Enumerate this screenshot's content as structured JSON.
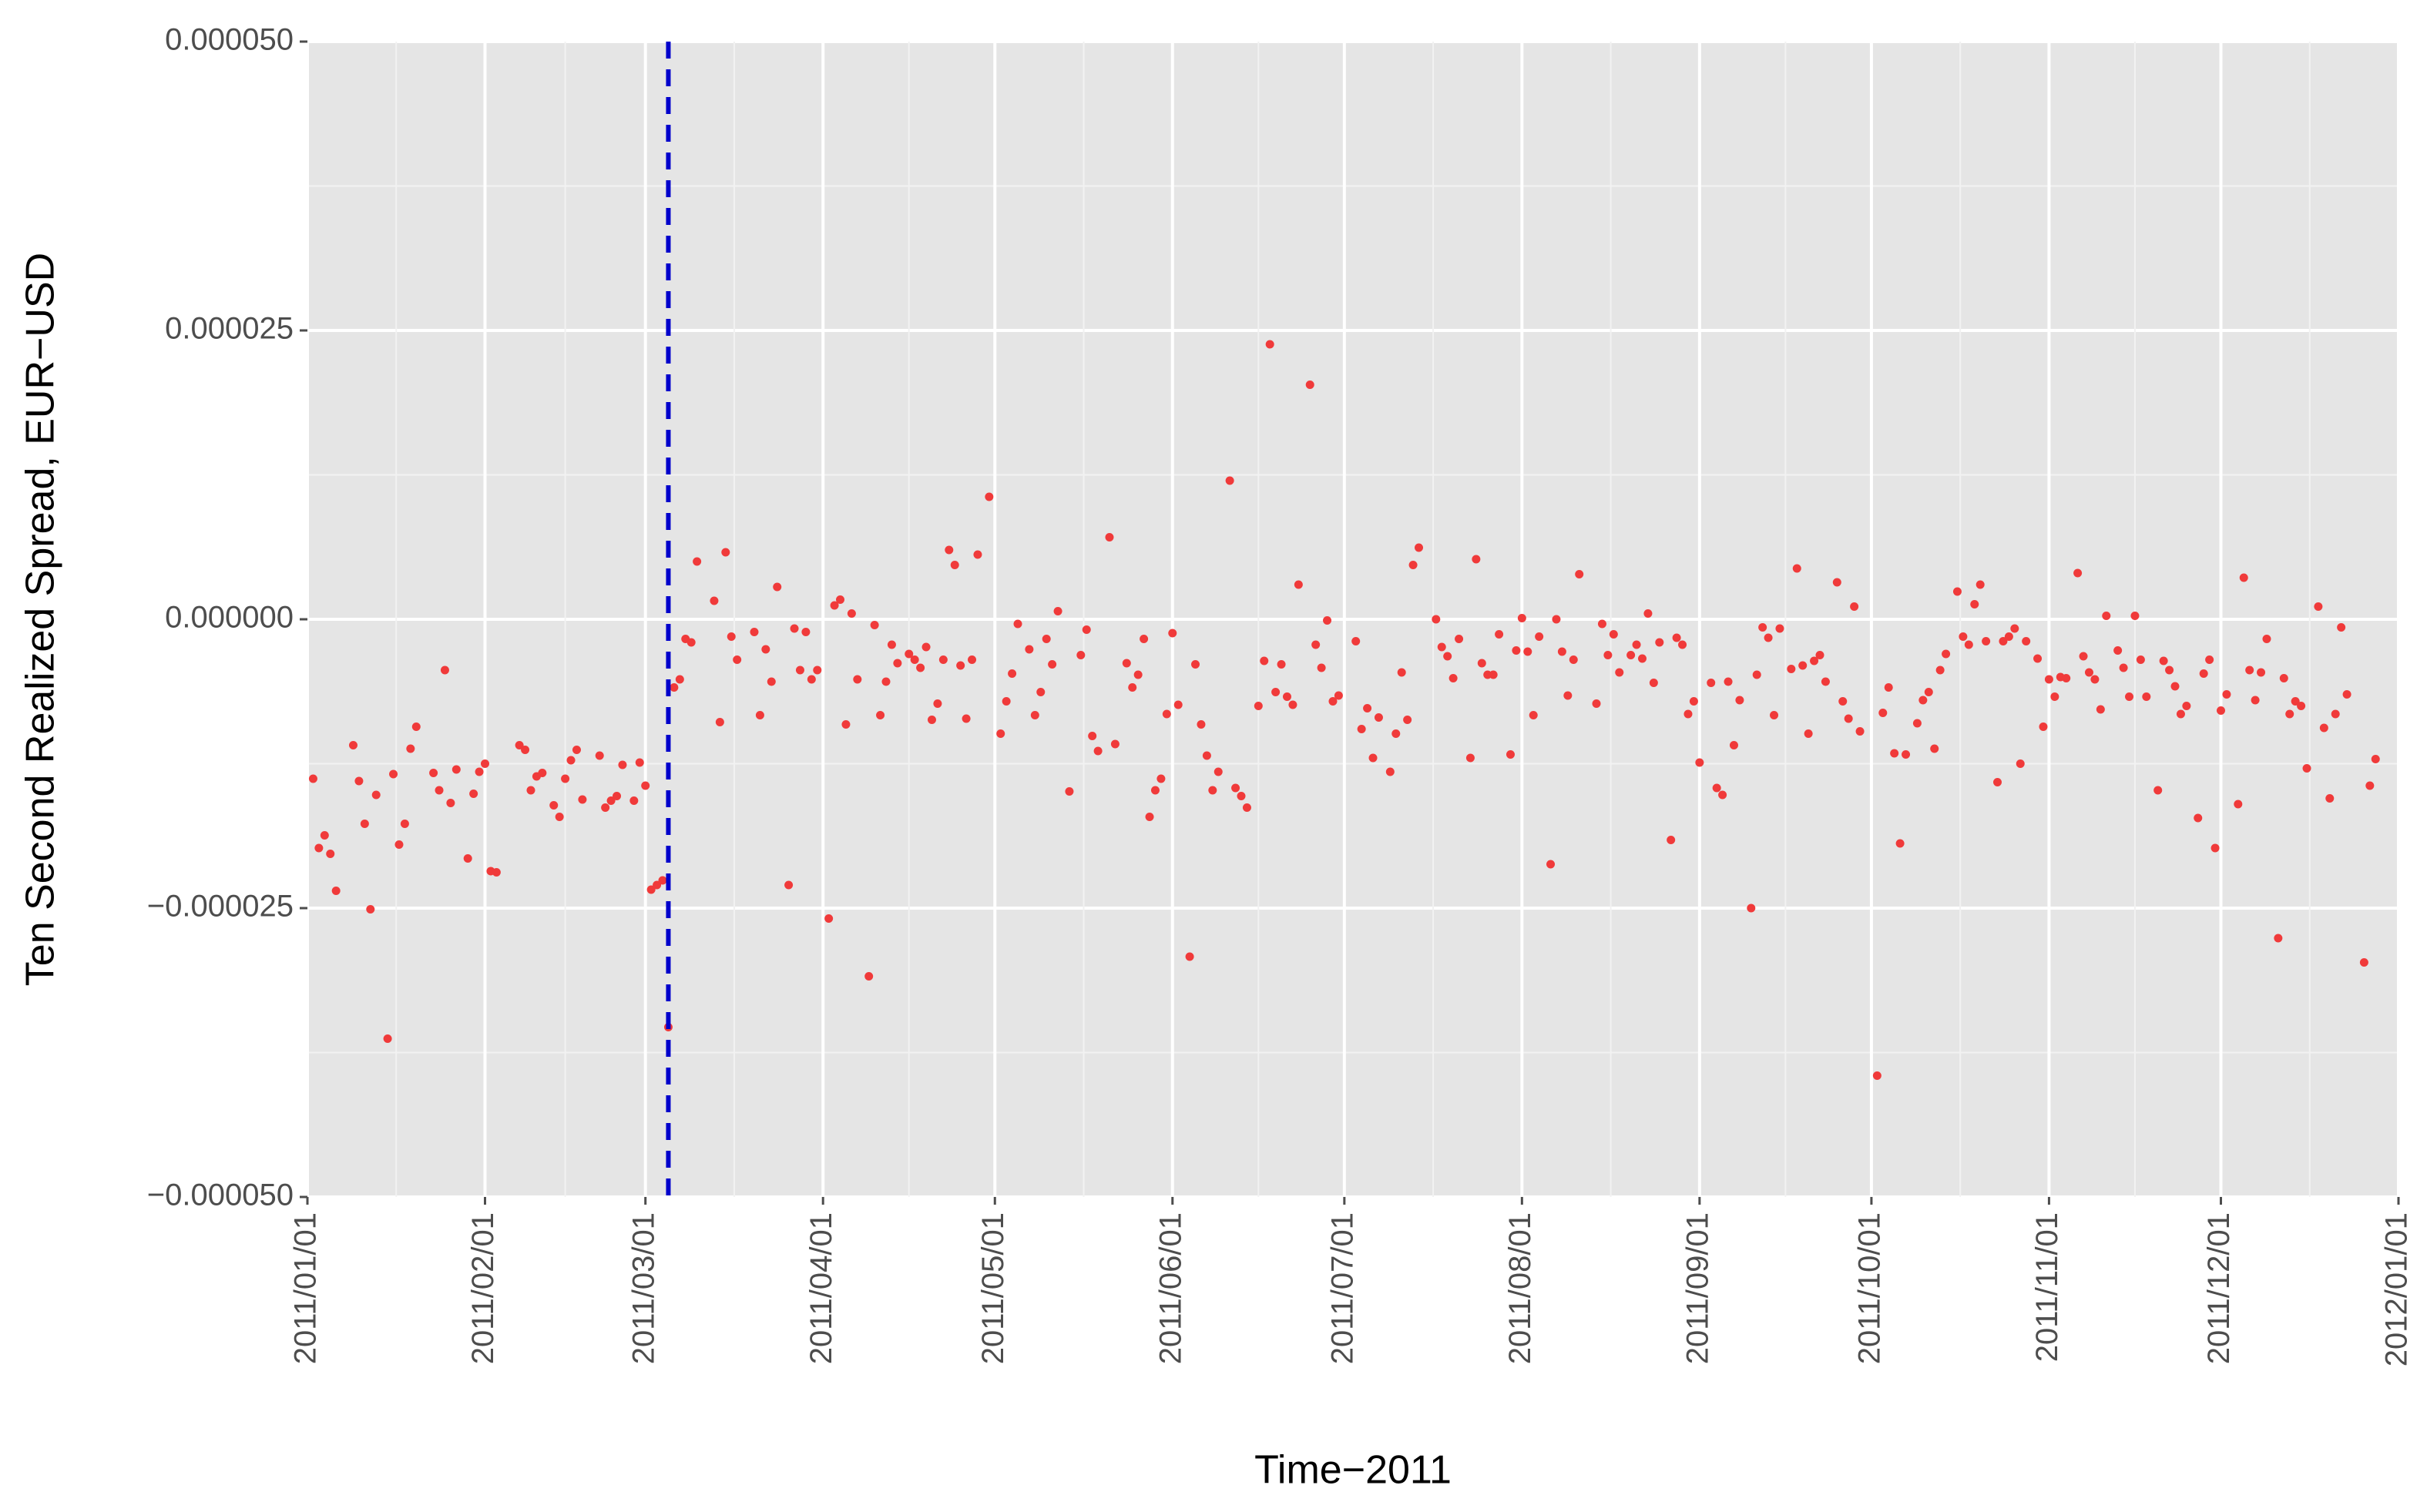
{
  "chart_data": {
    "type": "scatter",
    "xlabel": "Time−2011",
    "ylabel": "Ten Second Realized Spread, EUR−USD",
    "color": "#f03a3a",
    "vline": "2011/03/05",
    "vline_color": "#0000cc",
    "grid": true,
    "xlim": [
      "2011/01/01",
      "2012/01/01"
    ],
    "xticks": [
      "2011/01/01",
      "2011/02/01",
      "2011/03/01",
      "2011/04/01",
      "2011/05/01",
      "2011/06/01",
      "2011/07/01",
      "2011/08/01",
      "2011/09/01",
      "2011/10/01",
      "2011/11/01",
      "2011/12/01",
      "2012/01/01"
    ],
    "ylim": [
      -5e-05,
      5e-05
    ],
    "yticks": [
      {
        "value": -5e-05,
        "label": "−0.000050"
      },
      {
        "value": -2.5e-05,
        "label": "−0.000025"
      },
      {
        "value": 0,
        "label": "0.000000"
      },
      {
        "value": 2.5e-05,
        "label": "0.000025"
      },
      {
        "value": 5e-05,
        "label": "0.000050"
      }
    ],
    "x": [
      "2011/01/02",
      "2011/01/03",
      "2011/01/04",
      "2011/01/05",
      "2011/01/06",
      "2011/01/09",
      "2011/01/10",
      "2011/01/11",
      "2011/01/12",
      "2011/01/13",
      "2011/01/15",
      "2011/01/16",
      "2011/01/17",
      "2011/01/18",
      "2011/01/19",
      "2011/01/20",
      "2011/01/23",
      "2011/01/24",
      "2011/01/25",
      "2011/01/26",
      "2011/01/27",
      "2011/01/29",
      "2011/01/30",
      "2011/01/31",
      "2011/02/01",
      "2011/02/02",
      "2011/02/03",
      "2011/02/07",
      "2011/02/08",
      "2011/02/09",
      "2011/02/10",
      "2011/02/11",
      "2011/02/13",
      "2011/02/14",
      "2011/02/15",
      "2011/02/16",
      "2011/02/17",
      "2011/02/18",
      "2011/02/21",
      "2011/02/22",
      "2011/02/23",
      "2011/02/24",
      "2011/02/25",
      "2011/02/27",
      "2011/02/28",
      "2011/03/01",
      "2011/03/02",
      "2011/03/03",
      "2011/03/04",
      "2011/03/05",
      "2011/03/06",
      "2011/03/07",
      "2011/03/08",
      "2011/03/09",
      "2011/03/10",
      "2011/03/13",
      "2011/03/14",
      "2011/03/15",
      "2011/03/16",
      "2011/03/17",
      "2011/03/20",
      "2011/03/21",
      "2011/03/22",
      "2011/03/23",
      "2011/03/24",
      "2011/03/26",
      "2011/03/27",
      "2011/03/28",
      "2011/03/29",
      "2011/03/30",
      "2011/03/31",
      "2011/04/02",
      "2011/04/03",
      "2011/04/04",
      "2011/04/05",
      "2011/04/06",
      "2011/04/07",
      "2011/04/09",
      "2011/04/10",
      "2011/04/11",
      "2011/04/12",
      "2011/04/13",
      "2011/04/14",
      "2011/04/16",
      "2011/04/17",
      "2011/04/18",
      "2011/04/19",
      "2011/04/20",
      "2011/04/21",
      "2011/04/22",
      "2011/04/23",
      "2011/04/24",
      "2011/04/25",
      "2011/04/26",
      "2011/04/27",
      "2011/04/28",
      "2011/04/30",
      "2011/05/02",
      "2011/05/03",
      "2011/05/04",
      "2011/05/05",
      "2011/05/07",
      "2011/05/08",
      "2011/05/09",
      "2011/05/10",
      "2011/05/11",
      "2011/05/12",
      "2011/05/14",
      "2011/05/16",
      "2011/05/17",
      "2011/05/18",
      "2011/05/19",
      "2011/05/21",
      "2011/05/22",
      "2011/05/24",
      "2011/05/25",
      "2011/05/26",
      "2011/05/27",
      "2011/05/28",
      "2011/05/29",
      "2011/05/30",
      "2011/05/31",
      "2011/06/01",
      "2011/06/02",
      "2011/06/04",
      "2011/06/05",
      "2011/06/06",
      "2011/06/07",
      "2011/06/08",
      "2011/06/09",
      "2011/06/11",
      "2011/06/12",
      "2011/06/13",
      "2011/06/14",
      "2011/06/16",
      "2011/06/17",
      "2011/06/18",
      "2011/06/19",
      "2011/06/20",
      "2011/06/21",
      "2011/06/22",
      "2011/06/23",
      "2011/06/25",
      "2011/06/26",
      "2011/06/27",
      "2011/06/28",
      "2011/06/29",
      "2011/06/30",
      "2011/07/03",
      "2011/07/04",
      "2011/07/05",
      "2011/07/06",
      "2011/07/07",
      "2011/07/09",
      "2011/07/10",
      "2011/07/11",
      "2011/07/12",
      "2011/07/13",
      "2011/07/14",
      "2011/07/17",
      "2011/07/18",
      "2011/07/19",
      "2011/07/20",
      "2011/07/21",
      "2011/07/23",
      "2011/07/24",
      "2011/07/25",
      "2011/07/26",
      "2011/07/27",
      "2011/07/28",
      "2011/07/30",
      "2011/07/31",
      "2011/08/01",
      "2011/08/02",
      "2011/08/03",
      "2011/08/04",
      "2011/08/06",
      "2011/08/07",
      "2011/08/08",
      "2011/08/09",
      "2011/08/10",
      "2011/08/11",
      "2011/08/14",
      "2011/08/15",
      "2011/08/16",
      "2011/08/17",
      "2011/08/18",
      "2011/08/20",
      "2011/08/21",
      "2011/08/22",
      "2011/08/23",
      "2011/08/24",
      "2011/08/25",
      "2011/08/27",
      "2011/08/28",
      "2011/08/29",
      "2011/08/30",
      "2011/08/31",
      "2011/09/01",
      "2011/09/03",
      "2011/09/04",
      "2011/09/05",
      "2011/09/06",
      "2011/09/07",
      "2011/09/08",
      "2011/09/10",
      "2011/09/11",
      "2011/09/12",
      "2011/09/13",
      "2011/09/14",
      "2011/09/15",
      "2011/09/17",
      "2011/09/18",
      "2011/09/19",
      "2011/09/20",
      "2011/09/21",
      "2011/09/22",
      "2011/09/23",
      "2011/09/25",
      "2011/09/26",
      "2011/09/27",
      "2011/09/28",
      "2011/09/29",
      "2011/10/02",
      "2011/10/03",
      "2011/10/04",
      "2011/10/05",
      "2011/10/06",
      "2011/10/07",
      "2011/10/09",
      "2011/10/10",
      "2011/10/11",
      "2011/10/12",
      "2011/10/13",
      "2011/10/14",
      "2011/10/16",
      "2011/10/17",
      "2011/10/18",
      "2011/10/19",
      "2011/10/20",
      "2011/10/21",
      "2011/10/23",
      "2011/10/24",
      "2011/10/25",
      "2011/10/26",
      "2011/10/27",
      "2011/10/28",
      "2011/10/30",
      "2011/10/31",
      "2011/11/01",
      "2011/11/02",
      "2011/11/03",
      "2011/11/04",
      "2011/11/06",
      "2011/11/07",
      "2011/11/08",
      "2011/11/09",
      "2011/11/10",
      "2011/11/11",
      "2011/11/13",
      "2011/11/14",
      "2011/11/15",
      "2011/11/16",
      "2011/11/17",
      "2011/11/18",
      "2011/11/20",
      "2011/11/21",
      "2011/11/22",
      "2011/11/23",
      "2011/11/24",
      "2011/11/25",
      "2011/11/27",
      "2011/11/28",
      "2011/11/29",
      "2011/11/30",
      "2011/12/01",
      "2011/12/02",
      "2011/12/04",
      "2011/12/05",
      "2011/12/06",
      "2011/12/07",
      "2011/12/08",
      "2011/12/09",
      "2011/12/11",
      "2011/12/12",
      "2011/12/13",
      "2011/12/14",
      "2011/12/15",
      "2011/12/16",
      "2011/12/18",
      "2011/12/19",
      "2011/12/20",
      "2011/12/21",
      "2011/12/22",
      "2011/12/23",
      "2011/12/26",
      "2011/12/27",
      "2011/12/28"
    ],
    "values": [
      -1.38e-05,
      -1.98e-05,
      -1.87e-05,
      -2.03e-05,
      -2.35e-05,
      -1.09e-05,
      -1.4e-05,
      -1.77e-05,
      -2.51e-05,
      -1.52e-05,
      -3.63e-05,
      -1.34e-05,
      -1.95e-05,
      -1.77e-05,
      -1.12e-05,
      -9.3e-06,
      -1.33e-05,
      -1.48e-05,
      -4.4e-06,
      -1.59e-05,
      -1.3e-05,
      -2.07e-05,
      -1.51e-05,
      -1.32e-05,
      -1.25e-05,
      -2.18e-05,
      -2.19e-05,
      -1.09e-05,
      -1.13e-05,
      -1.48e-05,
      -1.36e-05,
      -1.33e-05,
      -1.61e-05,
      -1.71e-05,
      -1.38e-05,
      -1.22e-05,
      -1.13e-05,
      -1.56e-05,
      -1.18e-05,
      -1.63e-05,
      -1.57e-05,
      -1.53e-05,
      -1.26e-05,
      -1.57e-05,
      -1.24e-05,
      -1.44e-05,
      -2.34e-05,
      -2.3e-05,
      -2.26e-05,
      -3.53e-05,
      -5.9e-06,
      -5.2e-06,
      -1.7e-06,
      -2e-06,
      5e-06,
      1.6e-06,
      -8.9e-06,
      5.8e-06,
      -1.5e-06,
      -3.5e-06,
      -1.1e-06,
      -8.3e-06,
      -2.6e-06,
      -5.4e-06,
      2.8e-06,
      -2.3e-05,
      -8e-07,
      -4.4e-06,
      -1.1e-06,
      -5.2e-06,
      -4.4e-06,
      -2.59e-05,
      1.2e-06,
      1.7e-06,
      -9.1e-06,
      5e-07,
      -5.2e-06,
      -3.09e-05,
      -5e-07,
      -8.3e-06,
      -5.4e-06,
      -2.2e-06,
      -3.8e-06,
      -3e-06,
      -3.5e-06,
      -4.2e-06,
      -2.4e-06,
      -8.7e-06,
      -7.3e-06,
      -3.5e-06,
      6e-06,
      4.7e-06,
      -4e-06,
      -8.6e-06,
      -3.5e-06,
      5.6e-06,
      1.06e-05,
      -9.9e-06,
      -7.1e-06,
      -4.7e-06,
      -4e-07,
      -2.6e-06,
      -8.3e-06,
      -6.3e-06,
      -1.7e-06,
      -3.9e-06,
      7e-07,
      -1.49e-05,
      -3.1e-06,
      -9e-07,
      -1.01e-05,
      -1.14e-05,
      7.1e-06,
      -1.08e-05,
      -3.8e-06,
      -5.9e-06,
      -4.8e-06,
      -1.7e-06,
      -1.71e-05,
      -1.48e-05,
      -1.38e-05,
      -8.2e-06,
      -1.2e-06,
      -7.4e-06,
      -2.92e-05,
      -3.9e-06,
      -9.1e-06,
      -1.18e-05,
      -1.48e-05,
      -1.32e-05,
      1.2e-05,
      -1.46e-05,
      -1.53e-05,
      -1.63e-05,
      -7.5e-06,
      -3.6e-06,
      2.38e-05,
      -6.3e-06,
      -3.9e-06,
      -6.7e-06,
      -7.4e-06,
      3e-06,
      2.03e-05,
      -2.2e-06,
      -4.2e-06,
      -1e-07,
      -7.1e-06,
      -6.6e-06,
      -1.9e-06,
      -9.5e-06,
      -7.7e-06,
      -1.2e-05,
      -8.5e-06,
      -1.32e-05,
      -9.9e-06,
      -4.6e-06,
      -8.7e-06,
      4.7e-06,
      6.2e-06,
      0,
      -2.4e-06,
      -3.2e-06,
      -5.1e-06,
      -1.7e-06,
      -1.2e-05,
      5.2e-06,
      -3.8e-06,
      -4.8e-06,
      -4.8e-06,
      -1.3e-06,
      -1.17e-05,
      -2.7e-06,
      1e-07,
      -2.8e-06,
      -8.3e-06,
      -1.5e-06,
      -2.12e-05,
      0,
      -2.8e-06,
      -6.6e-06,
      -3.5e-06,
      3.9e-06,
      -7.3e-06,
      -4e-07,
      -3.1e-06,
      -1.3e-06,
      -4.6e-06,
      -3.1e-06,
      -2.2e-06,
      -3.4e-06,
      5e-07,
      -5.5e-06,
      -2e-06,
      -1.91e-05,
      -1.6e-06,
      -2.2e-06,
      -8.2e-06,
      -7.1e-06,
      -1.24e-05,
      -5.5e-06,
      -1.46e-05,
      -1.52e-05,
      -5.4e-06,
      -1.09e-05,
      -7e-06,
      -2.5e-05,
      -4.8e-06,
      -7e-07,
      -1.6e-06,
      -8.3e-06,
      -8e-07,
      -4.3e-06,
      4.4e-06,
      -4e-06,
      -9.9e-06,
      -3.6e-06,
      -3.1e-06,
      -5.4e-06,
      3.2e-06,
      -7.1e-06,
      -8.6e-06,
      1.1e-06,
      -9.7e-06,
      -3.95e-05,
      -8.1e-06,
      -5.9e-06,
      -1.16e-05,
      -1.94e-05,
      -1.17e-05,
      -9e-06,
      -7e-06,
      -6.3e-06,
      -1.12e-05,
      -4.4e-06,
      -3e-06,
      2.4e-06,
      -1.5e-06,
      -2.2e-06,
      1.3e-06,
      3e-06,
      -1.9e-06,
      -1.41e-05,
      -1.9e-06,
      -1.5e-06,
      -8e-07,
      -1.25e-05,
      -1.9e-06,
      -3.4e-06,
      -9.3e-06,
      -5.2e-06,
      -6.7e-06,
      -5e-06,
      -5.1e-06,
      4e-06,
      -3.2e-06,
      -4.6e-06,
      -5.2e-06,
      -7.8e-06,
      3e-07,
      -2.7e-06,
      -4.2e-06,
      -6.7e-06,
      3e-07,
      -3.5e-06,
      -6.7e-06,
      -1.48e-05,
      -3.6e-06,
      -4.4e-06,
      -5.8e-06,
      -8.2e-06,
      -7.5e-06,
      -1.72e-05,
      -4.7e-06,
      -3.5e-06,
      -1.98e-05,
      -7.9e-06,
      -6.5e-06,
      -1.6e-05,
      3.6e-06,
      -4.4e-06,
      -7e-06,
      -4.6e-06,
      -1.7e-06,
      -2.76e-05,
      -5.1e-06,
      -8.2e-06,
      -7.1e-06,
      -7.5e-06,
      -1.29e-05,
      1.1e-06,
      -9.4e-06,
      -1.55e-05,
      -8.2e-06,
      -7e-07,
      -6.5e-06,
      -2.97e-05,
      -1.44e-05,
      -1.21e-05
    ]
  }
}
